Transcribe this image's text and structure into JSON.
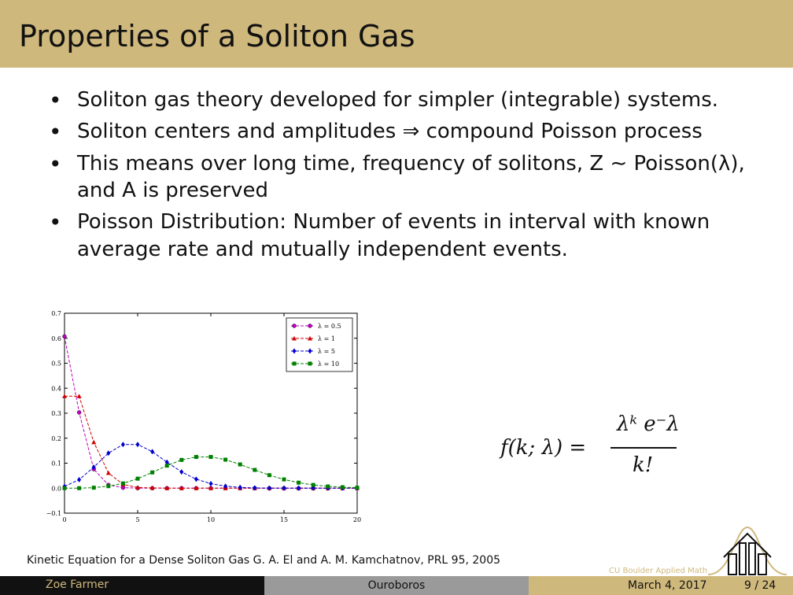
{
  "slide": {
    "title": "Properties of a Soliton Gas",
    "bullets": [
      "Soliton gas theory developed for simpler (integrable) systems.",
      "Soliton centers and amplitudes ⇒ compound Poisson process",
      "This means over long time, frequency of solitons, Z ∼ Poisson(λ), and A is preserved",
      "Poisson Distribution: Number of events in interval with known average rate and mutually independent events."
    ],
    "formula": {
      "lhs": "f(k; λ) =",
      "numerator": "λᵏ e⁻λ",
      "denominator": "k!"
    },
    "caption": "Kinetic Equation for a Dense Soliton Gas G. A. El and A. M. Kamchatnov, PRL 95, 2005",
    "logo_text": "CU Boulder Applied Math"
  },
  "footer": {
    "author": "Zoe Farmer",
    "talk": "Ouroboros",
    "date": "March 4, 2017",
    "page": "9 / 24"
  },
  "chart_data": {
    "type": "line",
    "title": "",
    "xlabel": "",
    "ylabel": "",
    "xlim": [
      0,
      20
    ],
    "ylim": [
      -0.1,
      0.7
    ],
    "x_ticks": [
      "0",
      "5",
      "10",
      "15",
      "20"
    ],
    "y_ticks": [
      "−0.1",
      "0.0",
      "0.1",
      "0.2",
      "0.3",
      "0.4",
      "0.5",
      "0.6",
      "0.7"
    ],
    "x": [
      0,
      1,
      2,
      3,
      4,
      5,
      6,
      7,
      8,
      9,
      10,
      11,
      12,
      13,
      14,
      15,
      16,
      17,
      18,
      19,
      20
    ],
    "legend_position": "top-right",
    "series": [
      {
        "name": "λ = 0.5",
        "color": "#c000c0",
        "marker": "o",
        "values": [
          0.607,
          0.303,
          0.076,
          0.013,
          0.002,
          0.0,
          0,
          0,
          0,
          0,
          0,
          0,
          0,
          0,
          0,
          0,
          0,
          0,
          0,
          0,
          0
        ]
      },
      {
        "name": "λ = 1",
        "color": "#d00000",
        "marker": "^",
        "values": [
          0.368,
          0.368,
          0.184,
          0.061,
          0.015,
          0.003,
          0.001,
          0,
          0,
          0,
          0,
          0,
          0,
          0,
          0,
          0,
          0,
          0,
          0,
          0,
          0
        ]
      },
      {
        "name": "λ = 5",
        "color": "#0000d0",
        "marker": "d",
        "values": [
          0.007,
          0.034,
          0.084,
          0.14,
          0.175,
          0.175,
          0.146,
          0.104,
          0.065,
          0.036,
          0.018,
          0.008,
          0.003,
          0.001,
          0,
          0,
          0,
          0,
          0,
          0,
          0
        ]
      },
      {
        "name": "λ = 10",
        "color": "#008000",
        "marker": "s",
        "values": [
          0.0,
          0.0,
          0.002,
          0.008,
          0.019,
          0.038,
          0.063,
          0.09,
          0.113,
          0.125,
          0.125,
          0.114,
          0.095,
          0.073,
          0.052,
          0.035,
          0.022,
          0.013,
          0.007,
          0.004,
          0.002
        ]
      }
    ]
  }
}
